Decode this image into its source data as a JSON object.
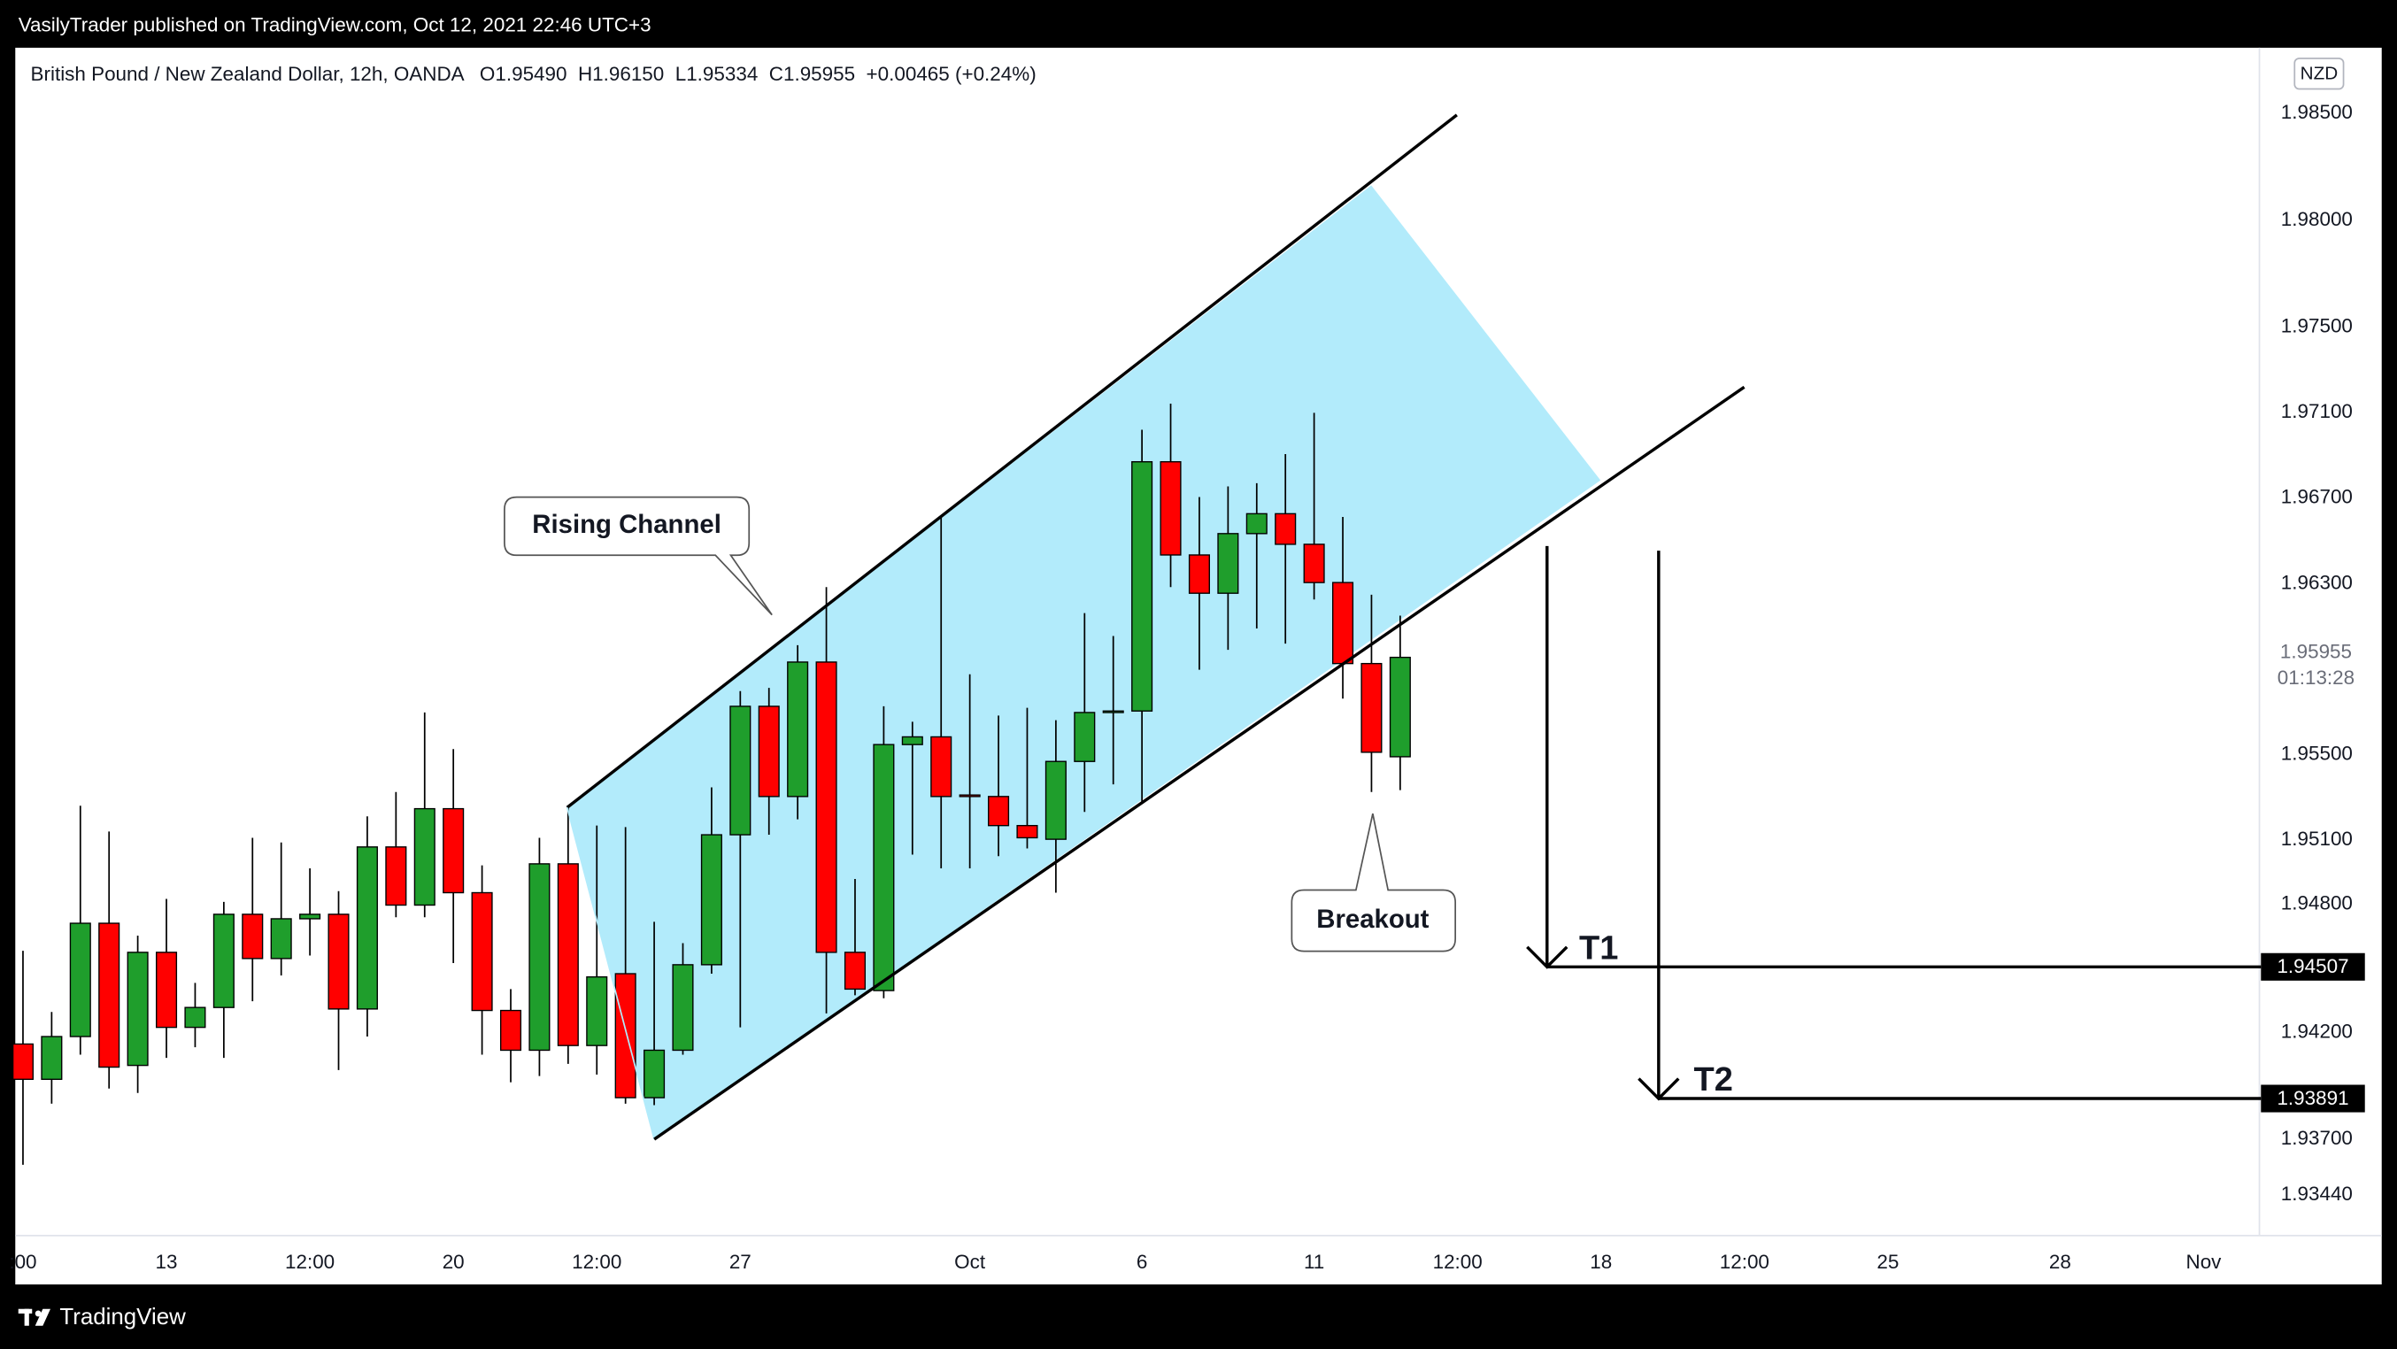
{
  "header": {
    "publisher": "VasilyTrader published on TradingView.com, Oct 12, 2021 22:46 UTC+3",
    "brand": "TradingView"
  },
  "chart_data": {
    "type": "candlestick",
    "title": "British Pound / New Zealand Dollar, 12h, OANDA",
    "ohlc_legend": "O1.95490  H1.96150  L1.95334  C1.95955  +0.00465 (+0.24%)",
    "currency": "NZD",
    "x": [
      0,
      1,
      2,
      3,
      4,
      5,
      6,
      7,
      8,
      9,
      10,
      11,
      12,
      13,
      14,
      15,
      16,
      17,
      18,
      19,
      20,
      21,
      22,
      23,
      24,
      25,
      26,
      27,
      28,
      29,
      30,
      31,
      32,
      33,
      34,
      35,
      36,
      37,
      38,
      39,
      40,
      41,
      42,
      43,
      44,
      45,
      46,
      47,
      48
    ],
    "open": [
      1.94146,
      1.93981,
      1.94181,
      1.94711,
      1.94046,
      1.94575,
      1.94224,
      1.94317,
      1.94753,
      1.94546,
      1.94732,
      1.94753,
      1.9431,
      1.95068,
      1.94796,
      1.95247,
      1.94854,
      1.94303,
      1.94117,
      1.94989,
      1.94139,
      1.94475,
      1.93895,
      1.94117,
      1.94517,
      1.95125,
      1.95726,
      1.95304,
      1.95933,
      1.94575,
      1.94396,
      1.95547,
      1.95583,
      1.95311,
      1.95304,
      1.95168,
      1.95104,
      1.95468,
      1.95697,
      1.95704,
      1.9687,
      1.96434,
      1.96255,
      1.96534,
      1.96627,
      1.96484,
      1.96305,
      1.95926,
      1.9549
    ],
    "high": [
      1.94582,
      1.94296,
      1.95261,
      1.9514,
      1.94653,
      1.94825,
      1.94432,
      1.94811,
      1.95111,
      1.95089,
      1.94968,
      1.94861,
      1.95211,
      1.95325,
      1.95697,
      1.95526,
      1.94982,
      1.94403,
      1.95111,
      1.95254,
      1.95168,
      1.95161,
      1.94718,
      1.94618,
      1.95347,
      1.95797,
      1.95812,
      1.96012,
      1.96284,
      1.94918,
      1.95726,
      1.95654,
      1.96612,
      1.95876,
      1.95683,
      1.95719,
      1.95661,
      1.96162,
      1.96055,
      1.9702,
      1.97142,
      1.96705,
      1.96755,
      1.9677,
      1.96906,
      1.97099,
      1.96612,
      1.96248,
      1.9615
    ],
    "low": [
      1.93581,
      1.93867,
      1.94096,
      1.93938,
      1.93917,
      1.94081,
      1.94131,
      1.94081,
      1.94346,
      1.94467,
      1.9456,
      1.94024,
      1.94181,
      1.94739,
      1.94739,
      1.94525,
      1.94096,
      1.93967,
      1.93996,
      1.94053,
      1.94003,
      1.93867,
      1.9386,
      1.94096,
      1.94475,
      1.94224,
      1.95125,
      1.95197,
      1.94289,
      1.94374,
      1.9436,
      1.95032,
      1.94968,
      1.94968,
      1.95025,
      1.95061,
      1.94854,
      1.95232,
      1.95361,
      1.95275,
      1.96284,
      1.95897,
      1.9599,
      1.9609,
      1.96019,
      1.96226,
      1.95762,
      1.95325,
      1.95334
    ],
    "close": [
      1.93981,
      1.94181,
      1.94711,
      1.94038,
      1.94575,
      1.94224,
      1.94317,
      1.94753,
      1.94546,
      1.94732,
      1.94753,
      1.9431,
      1.95068,
      1.94796,
      1.95247,
      1.94854,
      1.94303,
      1.94117,
      1.94989,
      1.94139,
      1.9446,
      1.93895,
      1.94117,
      1.94517,
      1.95125,
      1.95726,
      1.95304,
      1.95933,
      1.94575,
      1.94403,
      1.95547,
      1.95583,
      1.95304,
      1.95304,
      1.95168,
      1.95111,
      1.95468,
      1.95697,
      1.95704,
      1.9687,
      1.96434,
      1.96255,
      1.96534,
      1.96627,
      1.96484,
      1.96305,
      1.95926,
      1.95511,
      1.95955
    ],
    "up_color": "#1f9e2c",
    "down_color": "#ff0000",
    "xlim": [
      -0.3,
      78
    ],
    "xticks": [
      {
        "value": 0,
        "label": ":00"
      },
      {
        "value": 5,
        "label": "13"
      },
      {
        "value": 10,
        "label": "12:00"
      },
      {
        "value": 15,
        "label": "20"
      },
      {
        "value": 20,
        "label": "12:00"
      },
      {
        "value": 25,
        "label": "27"
      },
      {
        "value": 33,
        "label": "Oct"
      },
      {
        "value": 39,
        "label": "6"
      },
      {
        "value": 45,
        "label": "11"
      },
      {
        "value": 50,
        "label": "12:00"
      },
      {
        "value": 55,
        "label": "18"
      },
      {
        "value": 60,
        "label": "12:00"
      },
      {
        "value": 65,
        "label": "25"
      },
      {
        "value": 71,
        "label": "28"
      },
      {
        "value": 76,
        "label": "Nov"
      }
    ],
    "ylim": [
      1.9325,
      1.988
    ],
    "yticks": [
      {
        "value": 1.985,
        "label": "1.98500"
      },
      {
        "value": 1.98,
        "label": "1.98000"
      },
      {
        "value": 1.975,
        "label": "1.97500"
      },
      {
        "value": 1.971,
        "label": "1.97100"
      },
      {
        "value": 1.967,
        "label": "1.96700"
      },
      {
        "value": 1.963,
        "label": "1.96300"
      },
      {
        "value": 1.955,
        "label": "1.95500"
      },
      {
        "value": 1.951,
        "label": "1.95100"
      },
      {
        "value": 1.948,
        "label": "1.94800"
      },
      {
        "value": 1.942,
        "label": "1.94200"
      },
      {
        "value": 1.937,
        "label": "1.93700"
      },
      {
        "value": 1.9344,
        "label": "1.93440"
      }
    ],
    "grid": false,
    "last_price": {
      "value": 1.95955,
      "label": "1.95955"
    },
    "countdown": "01:13:28",
    "targets": [
      {
        "name": "T1",
        "value": 1.94507,
        "label": "1.94507"
      },
      {
        "name": "T2",
        "value": 1.93891,
        "label": "1.93891"
      }
    ],
    "annotations": [
      "Rising Channel",
      "Breakout"
    ]
  }
}
